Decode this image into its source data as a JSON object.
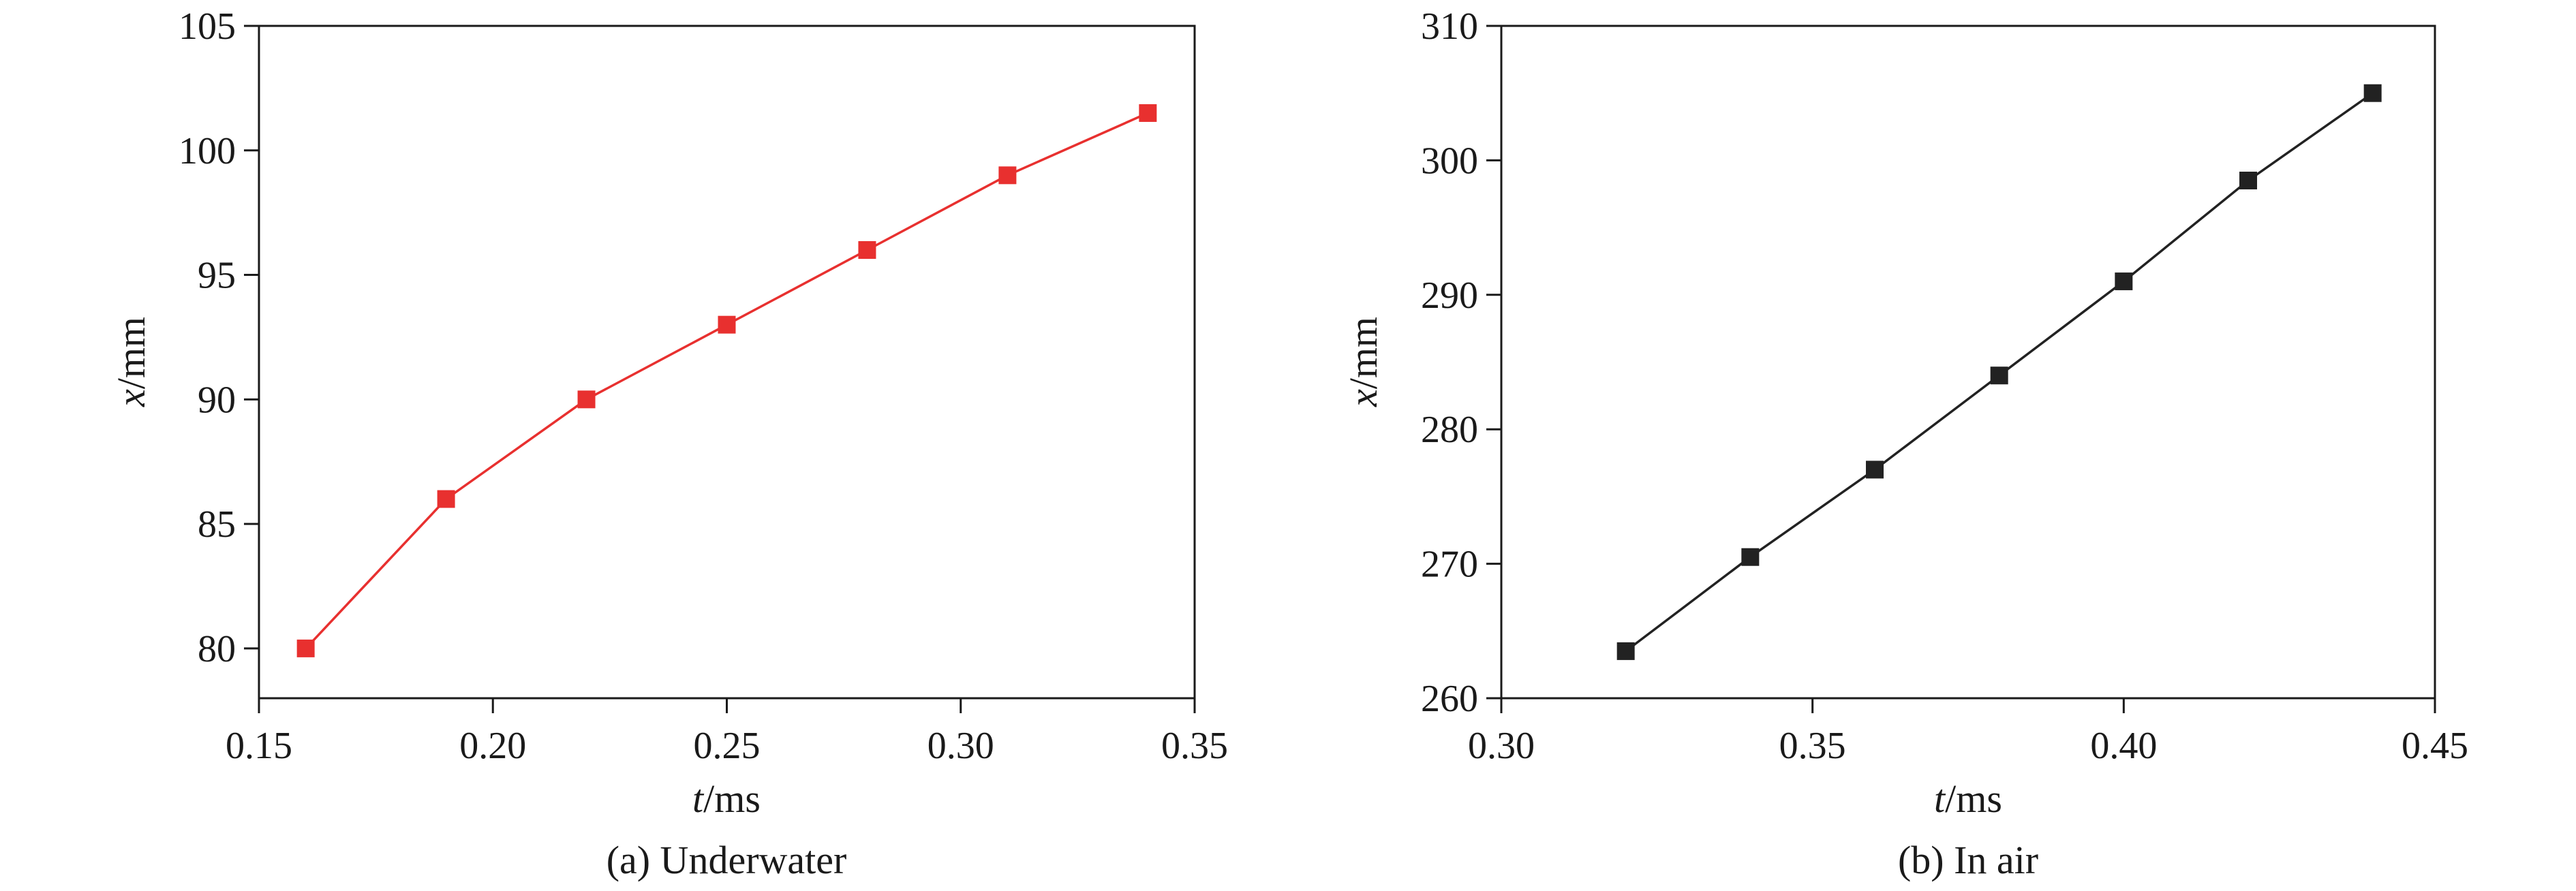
{
  "chart_data": [
    {
      "type": "line",
      "caption": "(a) Underwater",
      "xlabel_var": "t",
      "xlabel_unit": "/ms",
      "ylabel_var": "x",
      "ylabel_unit": "/mm",
      "xlim": [
        0.15,
        0.35
      ],
      "ylim": [
        78,
        105
      ],
      "xticks": [
        "0.15",
        "0.20",
        "0.25",
        "0.30",
        "0.35"
      ],
      "yticks": [
        "80",
        "85",
        "90",
        "95",
        "100",
        "105"
      ],
      "grid": false,
      "color": "#e8302f",
      "marker": "square",
      "series": [
        {
          "x": [
            0.16,
            0.19,
            0.22,
            0.25,
            0.28,
            0.31,
            0.34
          ],
          "y": [
            80,
            86,
            90,
            93,
            96,
            99,
            101.5
          ]
        }
      ]
    },
    {
      "type": "line",
      "caption": "(b) In air",
      "xlabel_var": "t",
      "xlabel_unit": "/ms",
      "ylabel_var": "x",
      "ylabel_unit": "/mm",
      "xlim": [
        0.3,
        0.45
      ],
      "ylim": [
        260,
        310
      ],
      "xticks": [
        "0.30",
        "0.35",
        "0.40",
        "0.45"
      ],
      "yticks": [
        "260",
        "270",
        "280",
        "290",
        "300",
        "310"
      ],
      "grid": false,
      "color": "#222222",
      "marker": "square",
      "series": [
        {
          "x": [
            0.32,
            0.34,
            0.36,
            0.38,
            0.4,
            0.42,
            0.44
          ],
          "y": [
            263.5,
            270.5,
            277,
            284,
            291,
            298.5,
            305
          ]
        }
      ]
    }
  ]
}
